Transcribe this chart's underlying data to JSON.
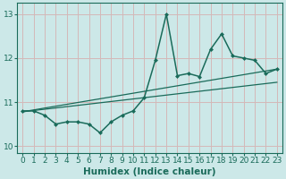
{
  "x": [
    0,
    1,
    2,
    3,
    4,
    5,
    6,
    7,
    8,
    9,
    10,
    11,
    12,
    13,
    14,
    15,
    16,
    17,
    18,
    19,
    20,
    21,
    22,
    23
  ],
  "y_main": [
    10.8,
    10.8,
    10.7,
    10.5,
    10.55,
    10.55,
    10.5,
    10.3,
    10.55,
    10.7,
    10.8,
    11.1,
    11.95,
    13.0,
    11.6,
    11.65,
    11.58,
    12.2,
    12.55,
    12.05,
    12.0,
    11.95,
    11.65,
    11.75
  ],
  "trend1_x": [
    0,
    23
  ],
  "trend1_y": [
    10.78,
    11.45
  ],
  "trend2_x": [
    0,
    23
  ],
  "trend2_y": [
    10.78,
    11.75
  ],
  "color_main": "#1a6b5a",
  "color_trend": "#1a6b5a",
  "bg_color": "#cce8e8",
  "grid_color_v": "#d4b8b8",
  "grid_color_h": "#d4b8b8",
  "xlabel": "Humidex (Indice chaleur)",
  "ylim": [
    9.85,
    13.25
  ],
  "xlim": [
    -0.5,
    23.5
  ],
  "yticks": [
    10,
    11,
    12,
    13
  ],
  "xticks": [
    0,
    1,
    2,
    3,
    4,
    5,
    6,
    7,
    8,
    9,
    10,
    11,
    12,
    13,
    14,
    15,
    16,
    17,
    18,
    19,
    20,
    21,
    22,
    23
  ],
  "xlabel_fontsize": 7.5,
  "tick_fontsize": 6.5,
  "line_width": 1.1,
  "marker_size": 2.5
}
